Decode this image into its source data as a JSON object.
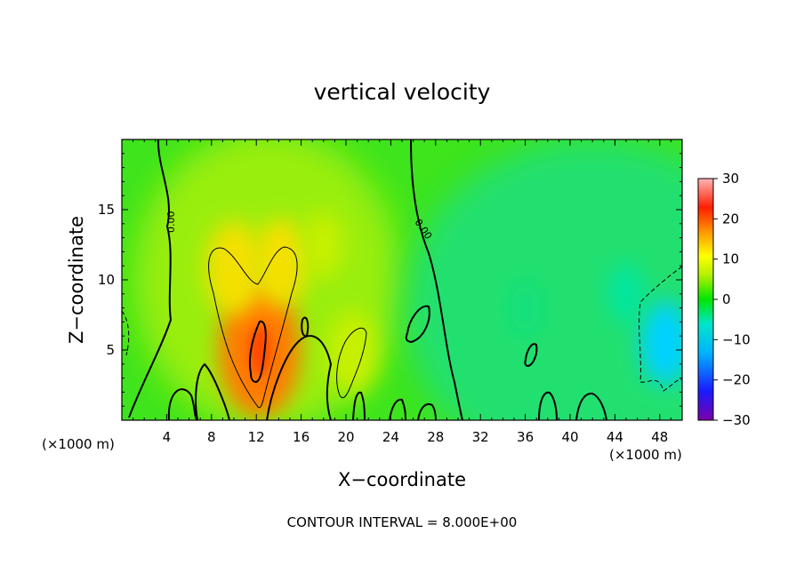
{
  "chart_data": {
    "type": "heatmap",
    "title": "vertical velocity",
    "xlabel": "X−coordinate",
    "ylabel": "Z−coordinate",
    "x_unit": "(×1000 m)",
    "y_unit": "(×1000 m)",
    "xlim": [
      0,
      50
    ],
    "ylim": [
      0,
      20
    ],
    "x_ticks": [
      4,
      8,
      12,
      16,
      20,
      24,
      28,
      32,
      36,
      40,
      44,
      48
    ],
    "y_ticks": [
      5,
      10,
      15
    ],
    "colorbar": {
      "range": [
        -30,
        30
      ],
      "ticks": [
        "30",
        "20",
        "10",
        "0",
        "−10",
        "−20",
        "−30"
      ]
    },
    "contour_labels": [
      "0.00",
      "0.00"
    ],
    "contour_interval_text": "CONTOUR INTERVAL = 8.000E+00",
    "features": [
      {
        "kind": "updraft",
        "x": 12.3,
        "z": 5.0,
        "w": 18
      },
      {
        "kind": "updraft",
        "x": 10.0,
        "z": 10.8,
        "w": 11
      },
      {
        "kind": "updraft",
        "x": 14.2,
        "z": 11.2,
        "w": 10
      },
      {
        "kind": "updraft",
        "x": 20.6,
        "z": 4.8,
        "w": 9
      },
      {
        "kind": "updraft",
        "x": 18.0,
        "z": 12.5,
        "w": 6
      },
      {
        "kind": "downdraft",
        "x": 48.5,
        "z": 5.5,
        "w": -9
      },
      {
        "kind": "downdraft",
        "x": 45.0,
        "z": 9.0,
        "w": -5
      },
      {
        "kind": "downdraft",
        "x": 36.0,
        "z": 8.0,
        "w": -3
      }
    ]
  }
}
